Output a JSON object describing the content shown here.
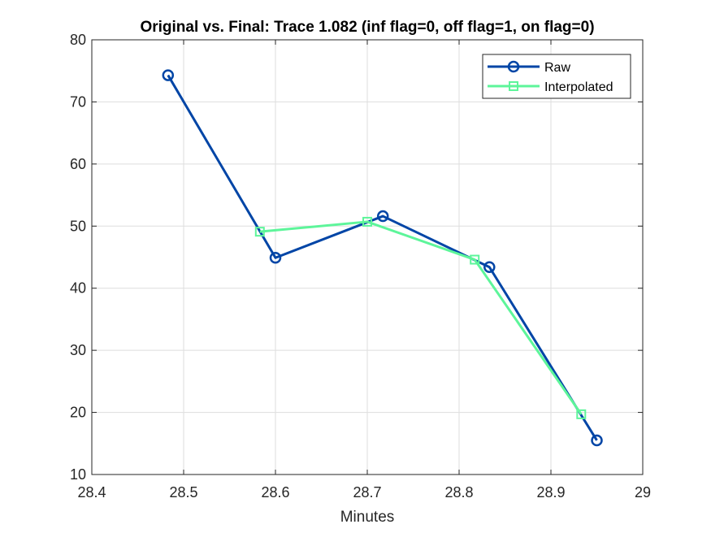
{
  "chart_data": {
    "type": "line",
    "title": "Original vs. Final: Trace 1.082 (inf flag=0, off flag=1, on flag=0)",
    "xlabel": "Minutes",
    "ylabel": "",
    "xlim": [
      28.4,
      29
    ],
    "ylim": [
      10,
      80
    ],
    "xticks": [
      28.4,
      28.5,
      28.6,
      28.7,
      28.8,
      28.9,
      29
    ],
    "yticks": [
      10,
      20,
      30,
      40,
      50,
      60,
      70,
      80
    ],
    "xtick_labels": [
      "28.4",
      "28.5",
      "28.6",
      "28.7",
      "28.8",
      "28.9",
      "29"
    ],
    "ytick_labels": [
      "10",
      "20",
      "30",
      "40",
      "50",
      "60",
      "70",
      "80"
    ],
    "grid": true,
    "legend_position": "top-right",
    "series": [
      {
        "name": "Raw",
        "color": "#0045a6",
        "marker": "circle",
        "x": [
          28.483,
          28.6,
          28.717,
          28.833,
          28.95
        ],
        "y": [
          74.3,
          44.9,
          51.6,
          43.4,
          15.5
        ]
      },
      {
        "name": "Interpolated",
        "color": "#5df59a",
        "marker": "square",
        "x": [
          28.583,
          28.7,
          28.817,
          28.933
        ],
        "y": [
          49.1,
          50.7,
          44.6,
          19.7
        ]
      }
    ]
  }
}
